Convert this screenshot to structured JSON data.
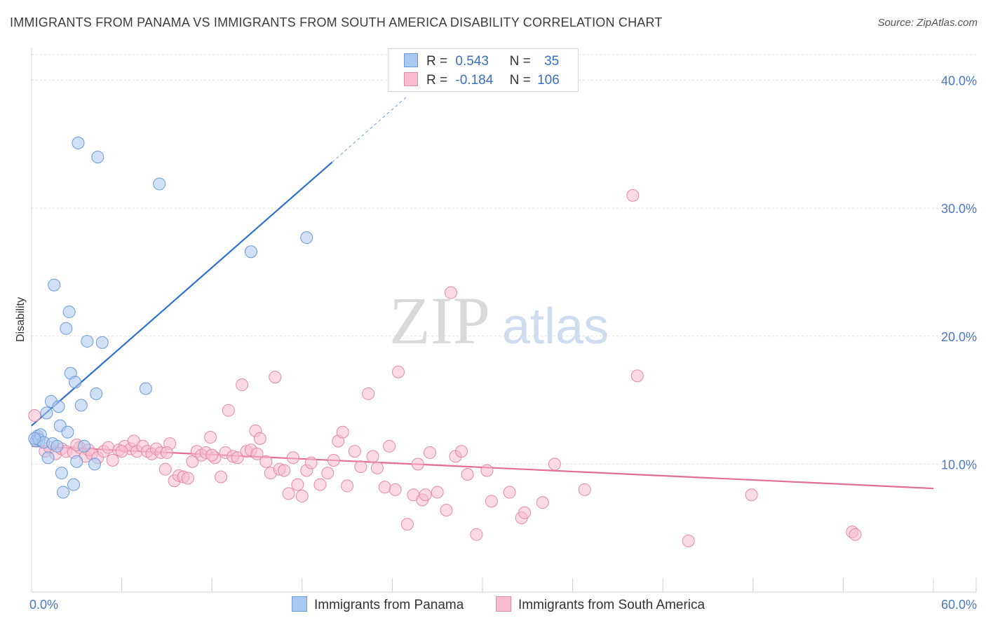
{
  "title": "IMMIGRANTS FROM PANAMA VS IMMIGRANTS FROM SOUTH AMERICA DISABILITY CORRELATION CHART",
  "source": "Source: ZipAtlas.com",
  "watermark": {
    "zip": "ZIP",
    "atlas": "atlas"
  },
  "legend": {
    "rows": [
      {
        "r_label": "R =",
        "r_value": "0.543",
        "n_label": "N =",
        "n_value": "35",
        "color": "#a9c8f0"
      },
      {
        "r_label": "R =",
        "r_value": "-0.184",
        "n_label": "N =",
        "n_value": "106",
        "color": "#f7bcd0"
      }
    ]
  },
  "bottom_legend": {
    "panama": "Immigrants from Panama",
    "south_america": "Immigrants from South America"
  },
  "colors": {
    "panama_fill": "#a9c8f0",
    "panama_stroke": "#6c9ad8",
    "panama_line": "#2f6fcf",
    "sa_fill": "#f7bcd0",
    "sa_stroke": "#e38aa8",
    "sa_line": "#e46c96",
    "tick_text": "#4a78c2"
  },
  "chart_data": {
    "type": "scatter",
    "title": "IMMIGRANTS FROM PANAMA VS IMMIGRANTS FROM SOUTH AMERICA DISABILITY CORRELATION CHART",
    "xlabel": "",
    "ylabel": "Disability",
    "xlim": [
      0,
      60
    ],
    "ylim": [
      0,
      42
    ],
    "x_tick_labels": [
      "0.0%",
      "60.0%"
    ],
    "y_ticks": [
      10,
      20,
      30,
      40
    ],
    "y_tick_labels": [
      "10.0%",
      "20.0%",
      "30.0%",
      "40.0%"
    ],
    "grid": true,
    "legend_position": "top-center",
    "series": [
      {
        "name": "Immigrants from Panama",
        "R": 0.543,
        "N": 35,
        "trend": {
          "x0": 0,
          "y0": 13.0,
          "x1": 20,
          "y1": 33.6,
          "dashed_to_x": 25
        },
        "points": [
          [
            0.3,
            11.8
          ],
          [
            0.4,
            12.2
          ],
          [
            0.5,
            11.9
          ],
          [
            0.6,
            12.3
          ],
          [
            0.8,
            11.7
          ],
          [
            1.0,
            14.0
          ],
          [
            1.1,
            10.5
          ],
          [
            1.3,
            14.9
          ],
          [
            1.4,
            11.6
          ],
          [
            1.5,
            24.0
          ],
          [
            1.7,
            11.4
          ],
          [
            1.8,
            14.5
          ],
          [
            1.9,
            13.0
          ],
          [
            2.0,
            9.3
          ],
          [
            2.1,
            7.8
          ],
          [
            2.3,
            20.6
          ],
          [
            2.4,
            12.5
          ],
          [
            2.5,
            21.9
          ],
          [
            2.6,
            17.1
          ],
          [
            2.8,
            8.4
          ],
          [
            2.9,
            16.4
          ],
          [
            3.0,
            10.2
          ],
          [
            3.1,
            35.1
          ],
          [
            3.3,
            14.6
          ],
          [
            3.5,
            11.4
          ],
          [
            3.7,
            19.6
          ],
          [
            4.2,
            10.0
          ],
          [
            4.3,
            15.5
          ],
          [
            4.4,
            34.0
          ],
          [
            4.7,
            19.5
          ],
          [
            7.6,
            15.9
          ],
          [
            8.5,
            31.9
          ],
          [
            14.6,
            26.6
          ],
          [
            18.3,
            27.7
          ],
          [
            0.2,
            12.0
          ]
        ]
      },
      {
        "name": "Immigrants from South America",
        "R": -0.184,
        "N": 106,
        "trend": {
          "x0": 0,
          "y0": 11.4,
          "x1": 60,
          "y1": 8.1
        },
        "points": [
          [
            0.2,
            13.8
          ],
          [
            0.4,
            12.0
          ],
          [
            0.9,
            11.0
          ],
          [
            1.2,
            11.3
          ],
          [
            1.6,
            10.8
          ],
          [
            2.0,
            11.2
          ],
          [
            2.3,
            11.0
          ],
          [
            2.8,
            10.9
          ],
          [
            3.2,
            11.3
          ],
          [
            3.6,
            10.6
          ],
          [
            3.8,
            11.1
          ],
          [
            4.0,
            10.8
          ],
          [
            4.4,
            10.5
          ],
          [
            4.8,
            11.0
          ],
          [
            5.1,
            11.3
          ],
          [
            5.4,
            10.3
          ],
          [
            5.8,
            11.1
          ],
          [
            6.2,
            11.4
          ],
          [
            6.6,
            11.2
          ],
          [
            6.8,
            11.8
          ],
          [
            7.0,
            11.0
          ],
          [
            7.4,
            11.4
          ],
          [
            7.7,
            11.0
          ],
          [
            8.0,
            10.8
          ],
          [
            8.3,
            11.2
          ],
          [
            8.6,
            10.9
          ],
          [
            8.9,
            9.6
          ],
          [
            9.2,
            11.6
          ],
          [
            9.5,
            8.7
          ],
          [
            9.8,
            9.1
          ],
          [
            10.1,
            9.0
          ],
          [
            10.4,
            8.9
          ],
          [
            10.7,
            10.2
          ],
          [
            11.0,
            11.0
          ],
          [
            11.3,
            10.7
          ],
          [
            11.6,
            10.9
          ],
          [
            11.9,
            12.1
          ],
          [
            12.2,
            10.5
          ],
          [
            12.6,
            9.0
          ],
          [
            12.9,
            10.9
          ],
          [
            13.1,
            14.2
          ],
          [
            13.4,
            10.6
          ],
          [
            13.7,
            10.5
          ],
          [
            14.0,
            16.2
          ],
          [
            14.3,
            11.0
          ],
          [
            14.6,
            11.1
          ],
          [
            14.9,
            12.6
          ],
          [
            15.2,
            12.0
          ],
          [
            15.6,
            10.2
          ],
          [
            15.9,
            9.3
          ],
          [
            16.2,
            16.8
          ],
          [
            16.5,
            9.6
          ],
          [
            16.8,
            9.5
          ],
          [
            17.1,
            7.7
          ],
          [
            17.4,
            10.5
          ],
          [
            17.7,
            8.4
          ],
          [
            18.0,
            7.5
          ],
          [
            18.3,
            9.5
          ],
          [
            18.6,
            10.1
          ],
          [
            19.2,
            8.4
          ],
          [
            19.7,
            9.3
          ],
          [
            20.1,
            10.3
          ],
          [
            20.4,
            11.8
          ],
          [
            20.7,
            12.5
          ],
          [
            21.0,
            8.3
          ],
          [
            21.5,
            11.0
          ],
          [
            21.9,
            9.8
          ],
          [
            22.4,
            15.5
          ],
          [
            22.7,
            10.6
          ],
          [
            23.0,
            9.7
          ],
          [
            23.5,
            8.2
          ],
          [
            23.8,
            11.4
          ],
          [
            24.2,
            8.0
          ],
          [
            24.4,
            17.2
          ],
          [
            25.0,
            5.3
          ],
          [
            25.4,
            7.6
          ],
          [
            25.7,
            10.0
          ],
          [
            26.0,
            7.2
          ],
          [
            26.2,
            7.6
          ],
          [
            27.0,
            7.8
          ],
          [
            27.6,
            6.4
          ],
          [
            27.9,
            23.4
          ],
          [
            28.2,
            10.6
          ],
          [
            28.6,
            11.0
          ],
          [
            29.0,
            9.2
          ],
          [
            29.6,
            4.5
          ],
          [
            30.3,
            9.5
          ],
          [
            30.6,
            7.1
          ],
          [
            31.8,
            7.8
          ],
          [
            32.6,
            5.8
          ],
          [
            32.8,
            6.2
          ],
          [
            34.0,
            7.0
          ],
          [
            34.8,
            10.0
          ],
          [
            36.8,
            8.0
          ],
          [
            40.0,
            31.0
          ],
          [
            40.3,
            16.9
          ],
          [
            43.7,
            4.0
          ],
          [
            47.9,
            7.6
          ],
          [
            54.6,
            4.7
          ],
          [
            54.8,
            4.5
          ],
          [
            12.0,
            10.7
          ],
          [
            15.0,
            10.8
          ],
          [
            6.0,
            11.0
          ],
          [
            9.0,
            10.9
          ],
          [
            26.5,
            10.9
          ],
          [
            3.0,
            11.5
          ]
        ]
      }
    ]
  }
}
